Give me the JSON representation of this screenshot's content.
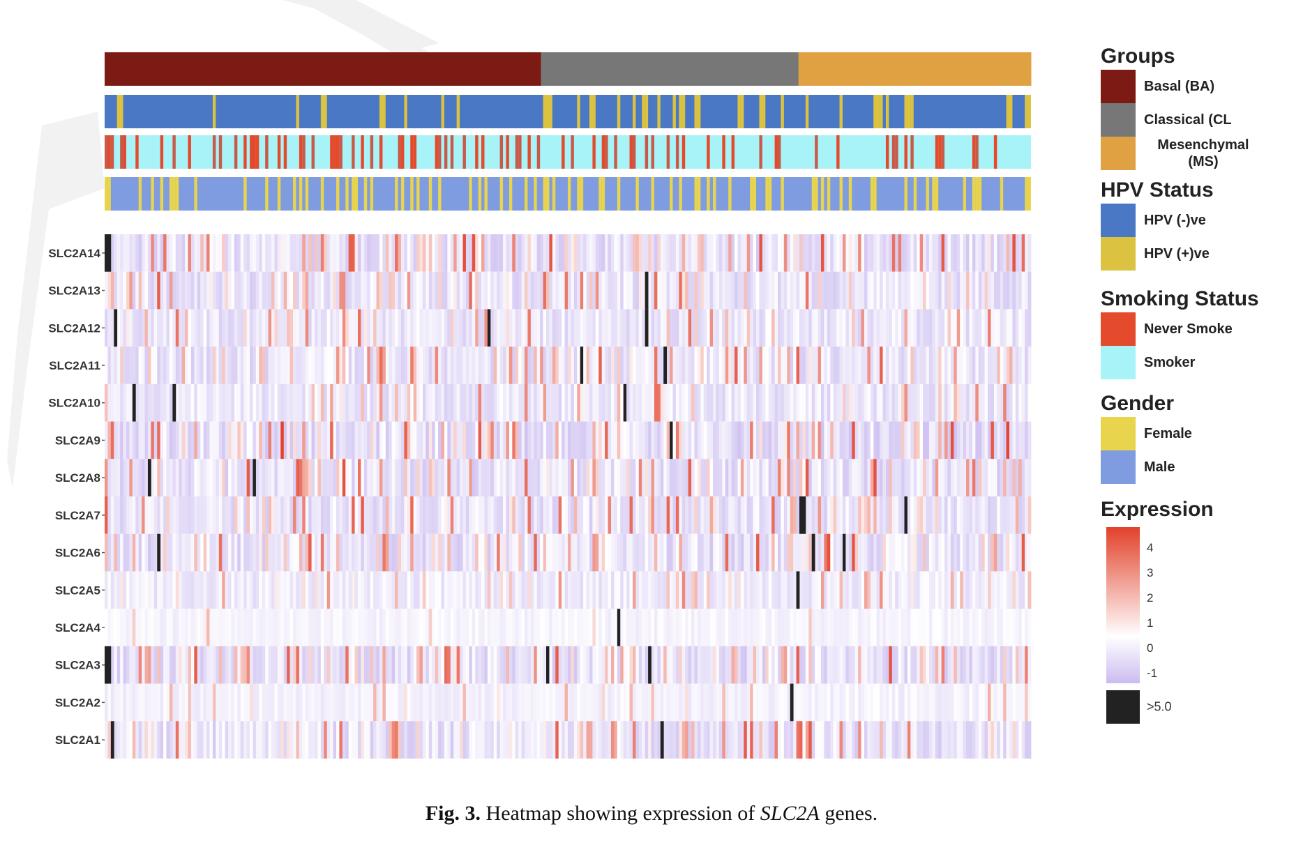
{
  "caption": {
    "prefix": "Fig. 3.",
    "text_before": "Heatmap showing expression of ",
    "gene": "SLC2A",
    "text_after": " genes."
  },
  "legend": {
    "groups": {
      "title": "Groups",
      "items": [
        {
          "label": "Basal (BA)",
          "color": "#7b1b14"
        },
        {
          "label": "Classical (CL",
          "color": "#777777"
        },
        {
          "label": "Mesenchymal (MS)",
          "color": "#e0a143"
        }
      ]
    },
    "hpv": {
      "title": "HPV Status",
      "items": [
        {
          "label": "HPV (-)ve",
          "color": "#4a78c4"
        },
        {
          "label": "HPV (+)ve",
          "color": "#dbc241"
        }
      ]
    },
    "smoking": {
      "title": "Smoking Status",
      "items": [
        {
          "label": "Never Smoke",
          "color": "#e44a2c"
        },
        {
          "label": "Smoker",
          "color": "#a7f3f7"
        }
      ]
    },
    "gender": {
      "title": "Gender",
      "items": [
        {
          "label": "Female",
          "color": "#e8d44d"
        },
        {
          "label": "Male",
          "color": "#7f9ce0"
        }
      ]
    },
    "expression": {
      "title": "Expression",
      "ticks": [
        "4",
        "3",
        "2",
        "1",
        "0",
        "-1"
      ],
      "na_label": ">5.0",
      "na_color": "#222222",
      "colors": {
        "high": "#e2412a",
        "mid": "#ffffff",
        "low": "#cbbcf0"
      }
    }
  },
  "chart_data": {
    "type": "heatmap",
    "title": "",
    "xlabel": "",
    "ylabel": "",
    "rows": [
      "SLC2A14",
      "SLC2A13",
      "SLC2A12",
      "SLC2A11",
      "SLC2A10",
      "SLC2A9",
      "SLC2A8",
      "SLC2A7",
      "SLC2A6",
      "SLC2A5",
      "SLC2A4",
      "SLC2A3",
      "SLC2A2",
      "SLC2A1"
    ],
    "color_scale": {
      "min": -1,
      "max": 4,
      "saturate_above": 5.0
    },
    "groups": [
      {
        "name": "Basal (BA)",
        "start": 0,
        "end": 0.471
      },
      {
        "name": "Classical (CL",
        "start": 0.471,
        "end": 0.749
      },
      {
        "name": "Mesenchymal (MS)",
        "start": 0.749,
        "end": 1.0
      }
    ],
    "note": "Per-sample expression values are not individually legible; columns are rendered procedurally in the range -1 to 4 with occasional >5.0 saturation."
  }
}
